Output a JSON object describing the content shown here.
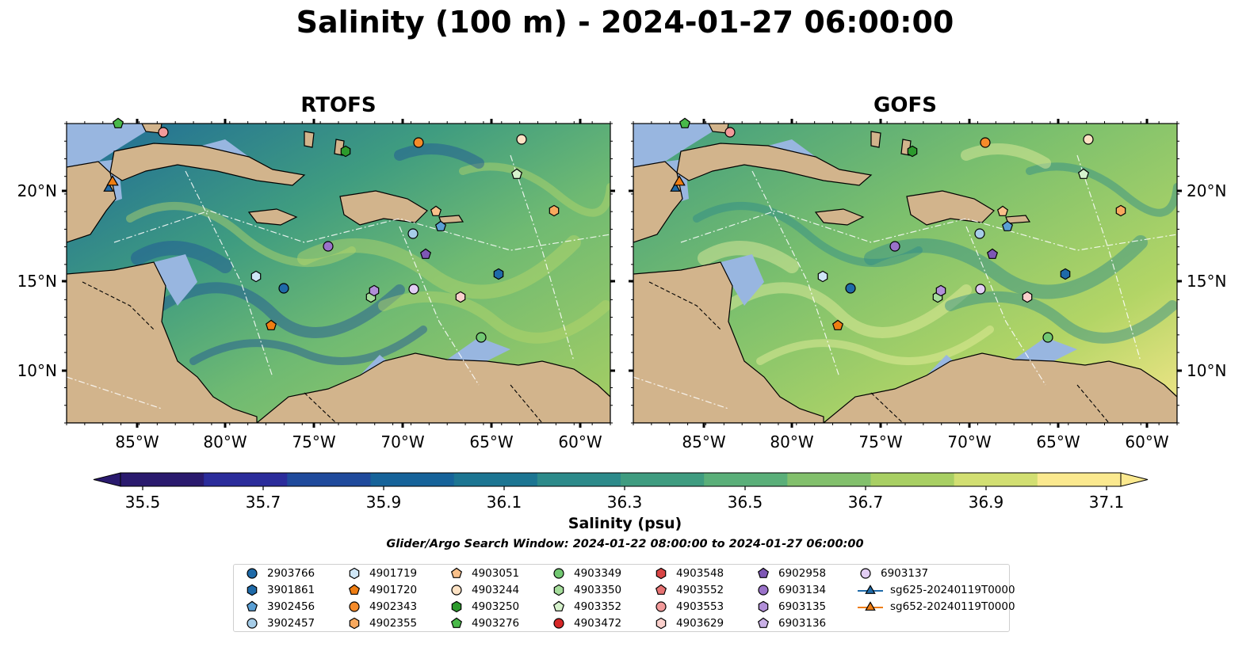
{
  "title": "Salinity (100 m) - 2024-01-27 06:00:00",
  "panels": [
    {
      "title": "RTOFS"
    },
    {
      "title": "GOFS"
    }
  ],
  "axes": {
    "lon_ticks": [
      "85°W",
      "80°W",
      "75°W",
      "70°W",
      "65°W",
      "60°W"
    ],
    "lat_ticks": [
      "20°N",
      "15°N",
      "10°N"
    ]
  },
  "colorbar": {
    "label": "Salinity (psu)",
    "tick_labels": [
      "35.5",
      "35.7",
      "35.9",
      "36.1",
      "36.3",
      "36.5",
      "36.7",
      "36.9",
      "37.1"
    ],
    "min": 35.5,
    "max": 37.1,
    "colors": [
      "#2a1a6e",
      "#2b2c9b",
      "#1f4a9c",
      "#16639a",
      "#1c7592",
      "#2c8a8a",
      "#3f9c80",
      "#5aaf79",
      "#82c06c",
      "#a8cf63",
      "#d2df72",
      "#fbe98f"
    ]
  },
  "search_window": "Glider/Argo Search Window: 2024-01-22 08:00:00 to 2024-01-27 06:00:00",
  "legend": [
    {
      "label": "2903766",
      "marker": "circle",
      "color": "#1f6aa8"
    },
    {
      "label": "3901861",
      "marker": "hexagon",
      "color": "#1f6aa8"
    },
    {
      "label": "3902456",
      "marker": "pentagon",
      "color": "#5a9fd4"
    },
    {
      "label": "3902457",
      "marker": "circle",
      "color": "#a6cde8"
    },
    {
      "label": "4901719",
      "marker": "hexagon",
      "color": "#cfe6f6"
    },
    {
      "label": "4901720",
      "marker": "pentagon",
      "color": "#ef7d12"
    },
    {
      "label": "4902343",
      "marker": "circle",
      "color": "#f58b2a"
    },
    {
      "label": "4902355",
      "marker": "hexagon",
      "color": "#f8a95e"
    },
    {
      "label": "4903051",
      "marker": "pentagon",
      "color": "#f9c08a"
    },
    {
      "label": "4903244",
      "marker": "circle",
      "color": "#fde2c4"
    },
    {
      "label": "4903250",
      "marker": "hexagon",
      "color": "#2c9a2c"
    },
    {
      "label": "4903276",
      "marker": "pentagon",
      "color": "#49b949"
    },
    {
      "label": "4903349",
      "marker": "circle",
      "color": "#72c872"
    },
    {
      "label": "4903350",
      "marker": "hexagon",
      "color": "#a5dd9b"
    },
    {
      "label": "4903352",
      "marker": "pentagon",
      "color": "#d6f2cc"
    },
    {
      "label": "4903472",
      "marker": "circle",
      "color": "#d62728"
    },
    {
      "label": "4903548",
      "marker": "hexagon",
      "color": "#d84545"
    },
    {
      "label": "4903552",
      "marker": "pentagon",
      "color": "#e77373"
    },
    {
      "label": "4903553",
      "marker": "circle",
      "color": "#f29a9a"
    },
    {
      "label": "4903629",
      "marker": "hexagon",
      "color": "#fbd0cc"
    },
    {
      "label": "6902958",
      "marker": "pentagon",
      "color": "#7e57b5"
    },
    {
      "label": "6903134",
      "marker": "circle",
      "color": "#9a72c9"
    },
    {
      "label": "6903135",
      "marker": "hexagon",
      "color": "#b18fd8"
    },
    {
      "label": "6903136",
      "marker": "pentagon",
      "color": "#c9b0e6"
    },
    {
      "label": "6903137",
      "marker": "circle",
      "color": "#e2cdf4"
    },
    {
      "label": "sg625-20240119T0000",
      "marker": "triangle-line",
      "color": "#1f6aa8"
    },
    {
      "label": "sg652-20240119T0000",
      "marker": "triangle-line",
      "color": "#ef7d12"
    }
  ],
  "map_colors": {
    "land": "#d2b48c",
    "shallow": "#98b6e0",
    "pacific": "#2a1a6e"
  }
}
